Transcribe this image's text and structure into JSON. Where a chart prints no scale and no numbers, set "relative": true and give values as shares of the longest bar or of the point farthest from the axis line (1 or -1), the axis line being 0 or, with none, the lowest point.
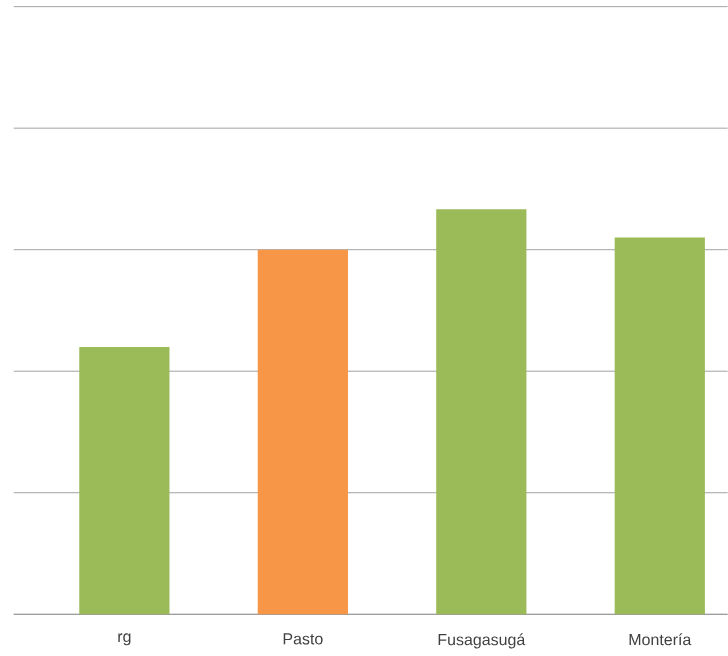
{
  "chart_data": {
    "type": "bar",
    "relative": true,
    "grid": "y",
    "categories": [
      "rg",
      "Pasto",
      "Fusagasugá",
      "Montería"
    ],
    "values": [
      0.66,
      0.9,
      1,
      0.93
    ],
    "colors": [
      "#9bbb59",
      "#f79646",
      "#9bbb59",
      "#9bbb59"
    ]
  }
}
